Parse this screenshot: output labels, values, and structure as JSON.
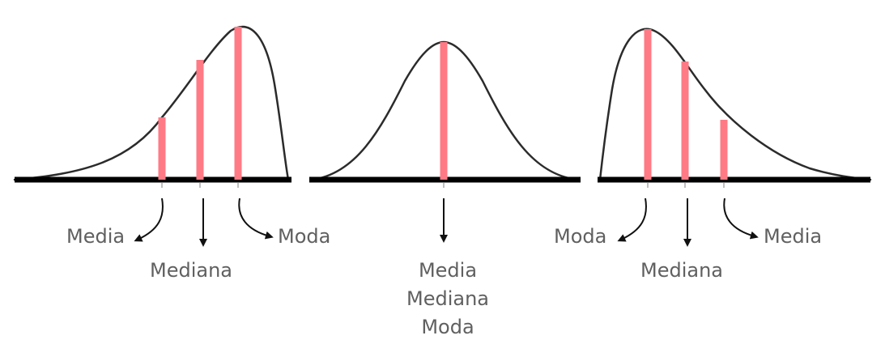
{
  "colors": {
    "curve": "#2b2b2b",
    "baseline": "#000000",
    "marker": "#ff7a85",
    "arrow": "#111111",
    "label": "#606060"
  },
  "left_distribution": {
    "markers": [
      {
        "name": "media",
        "relative_height": 0.4
      },
      {
        "name": "mediana",
        "relative_height": 0.78
      },
      {
        "name": "moda",
        "relative_height": 1.0
      }
    ],
    "labels": {
      "media": "Media",
      "mediana": "Mediana",
      "moda": "Moda"
    }
  },
  "center_distribution": {
    "markers": [
      {
        "name": "media-mediana-moda",
        "relative_height": 1.0
      }
    ],
    "labels": {
      "line1": "Media",
      "line2": "Mediana",
      "line3": "Moda"
    }
  },
  "right_distribution": {
    "markers": [
      {
        "name": "moda",
        "relative_height": 1.0
      },
      {
        "name": "mediana",
        "relative_height": 0.78
      },
      {
        "name": "media",
        "relative_height": 0.4
      }
    ],
    "labels": {
      "moda": "Moda",
      "mediana": "Mediana",
      "media": "Media"
    }
  }
}
